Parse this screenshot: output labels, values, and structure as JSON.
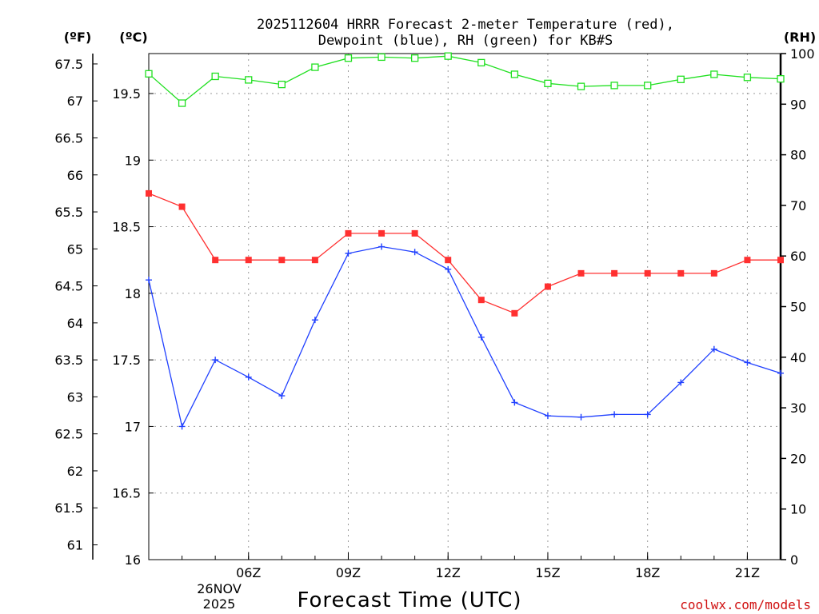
{
  "chart_data": {
    "type": "line",
    "title_line1": "2025112604 HRRR Forecast 2-meter Temperature (red),",
    "title_line2": "Dewpoint (blue), RH (green) for KB#S",
    "xlabel": "Forecast Time (UTC)",
    "date_day": "26NOV",
    "date_year": "2025",
    "credit": "coolwx.com/models",
    "left_unit_f": "(ºF)",
    "left_unit_c": "(ºC)",
    "right_unit": "(RH)",
    "x_hours": [
      3,
      4,
      5,
      6,
      7,
      8,
      9,
      10,
      11,
      12,
      13,
      14,
      15,
      16,
      17,
      18,
      19,
      20,
      21,
      22
    ],
    "x_range": [
      3,
      22
    ],
    "x_ticks": [
      {
        "hour": 6,
        "label": "06Z"
      },
      {
        "hour": 9,
        "label": "09Z"
      },
      {
        "hour": 12,
        "label": "12Z"
      },
      {
        "hour": 15,
        "label": "15Z"
      },
      {
        "hour": 18,
        "label": "18Z"
      },
      {
        "hour": 21,
        "label": "21Z"
      }
    ],
    "c_range": [
      16,
      19.8
    ],
    "c_ticks": [
      "16",
      "16.5",
      "17",
      "17.5",
      "18",
      "18.5",
      "19",
      "19.5"
    ],
    "f_ticks": [
      "61",
      "61.5",
      "62",
      "62.5",
      "63",
      "63.5",
      "64",
      "64.5",
      "65",
      "65.5",
      "66",
      "66.5",
      "67",
      "67.5"
    ],
    "rh_range": [
      0,
      100
    ],
    "rh_ticks": [
      "0",
      "10",
      "20",
      "30",
      "40",
      "50",
      "60",
      "70",
      "80",
      "90",
      "100"
    ],
    "series": [
      {
        "name": "Temperature",
        "color": "#ff3030",
        "marker": "filled-square",
        "axis": "c",
        "values": [
          18.75,
          18.65,
          18.25,
          18.25,
          18.25,
          18.25,
          18.45,
          18.45,
          18.45,
          18.25,
          17.95,
          17.85,
          18.05,
          18.15,
          18.15,
          18.15,
          18.15,
          18.15,
          18.25,
          18.25
        ]
      },
      {
        "name": "Dewpoint",
        "color": "#2040ff",
        "marker": "plus",
        "axis": "c",
        "values": [
          18.1,
          17.0,
          17.5,
          17.37,
          17.23,
          17.8,
          18.3,
          18.35,
          18.31,
          18.18,
          17.67,
          17.18,
          17.08,
          17.07,
          17.09,
          17.09,
          17.33,
          17.58,
          17.48,
          17.4
        ]
      },
      {
        "name": "RH",
        "color": "#20e020",
        "marker": "open-square",
        "axis": "rh",
        "values": [
          96,
          90.2,
          95.5,
          94.8,
          93.9,
          97.3,
          99.1,
          99.3,
          99.1,
          99.5,
          98.2,
          95.9,
          94.1,
          93.5,
          93.7,
          93.7,
          94.9,
          95.9,
          95.3,
          95.0
        ]
      }
    ]
  }
}
